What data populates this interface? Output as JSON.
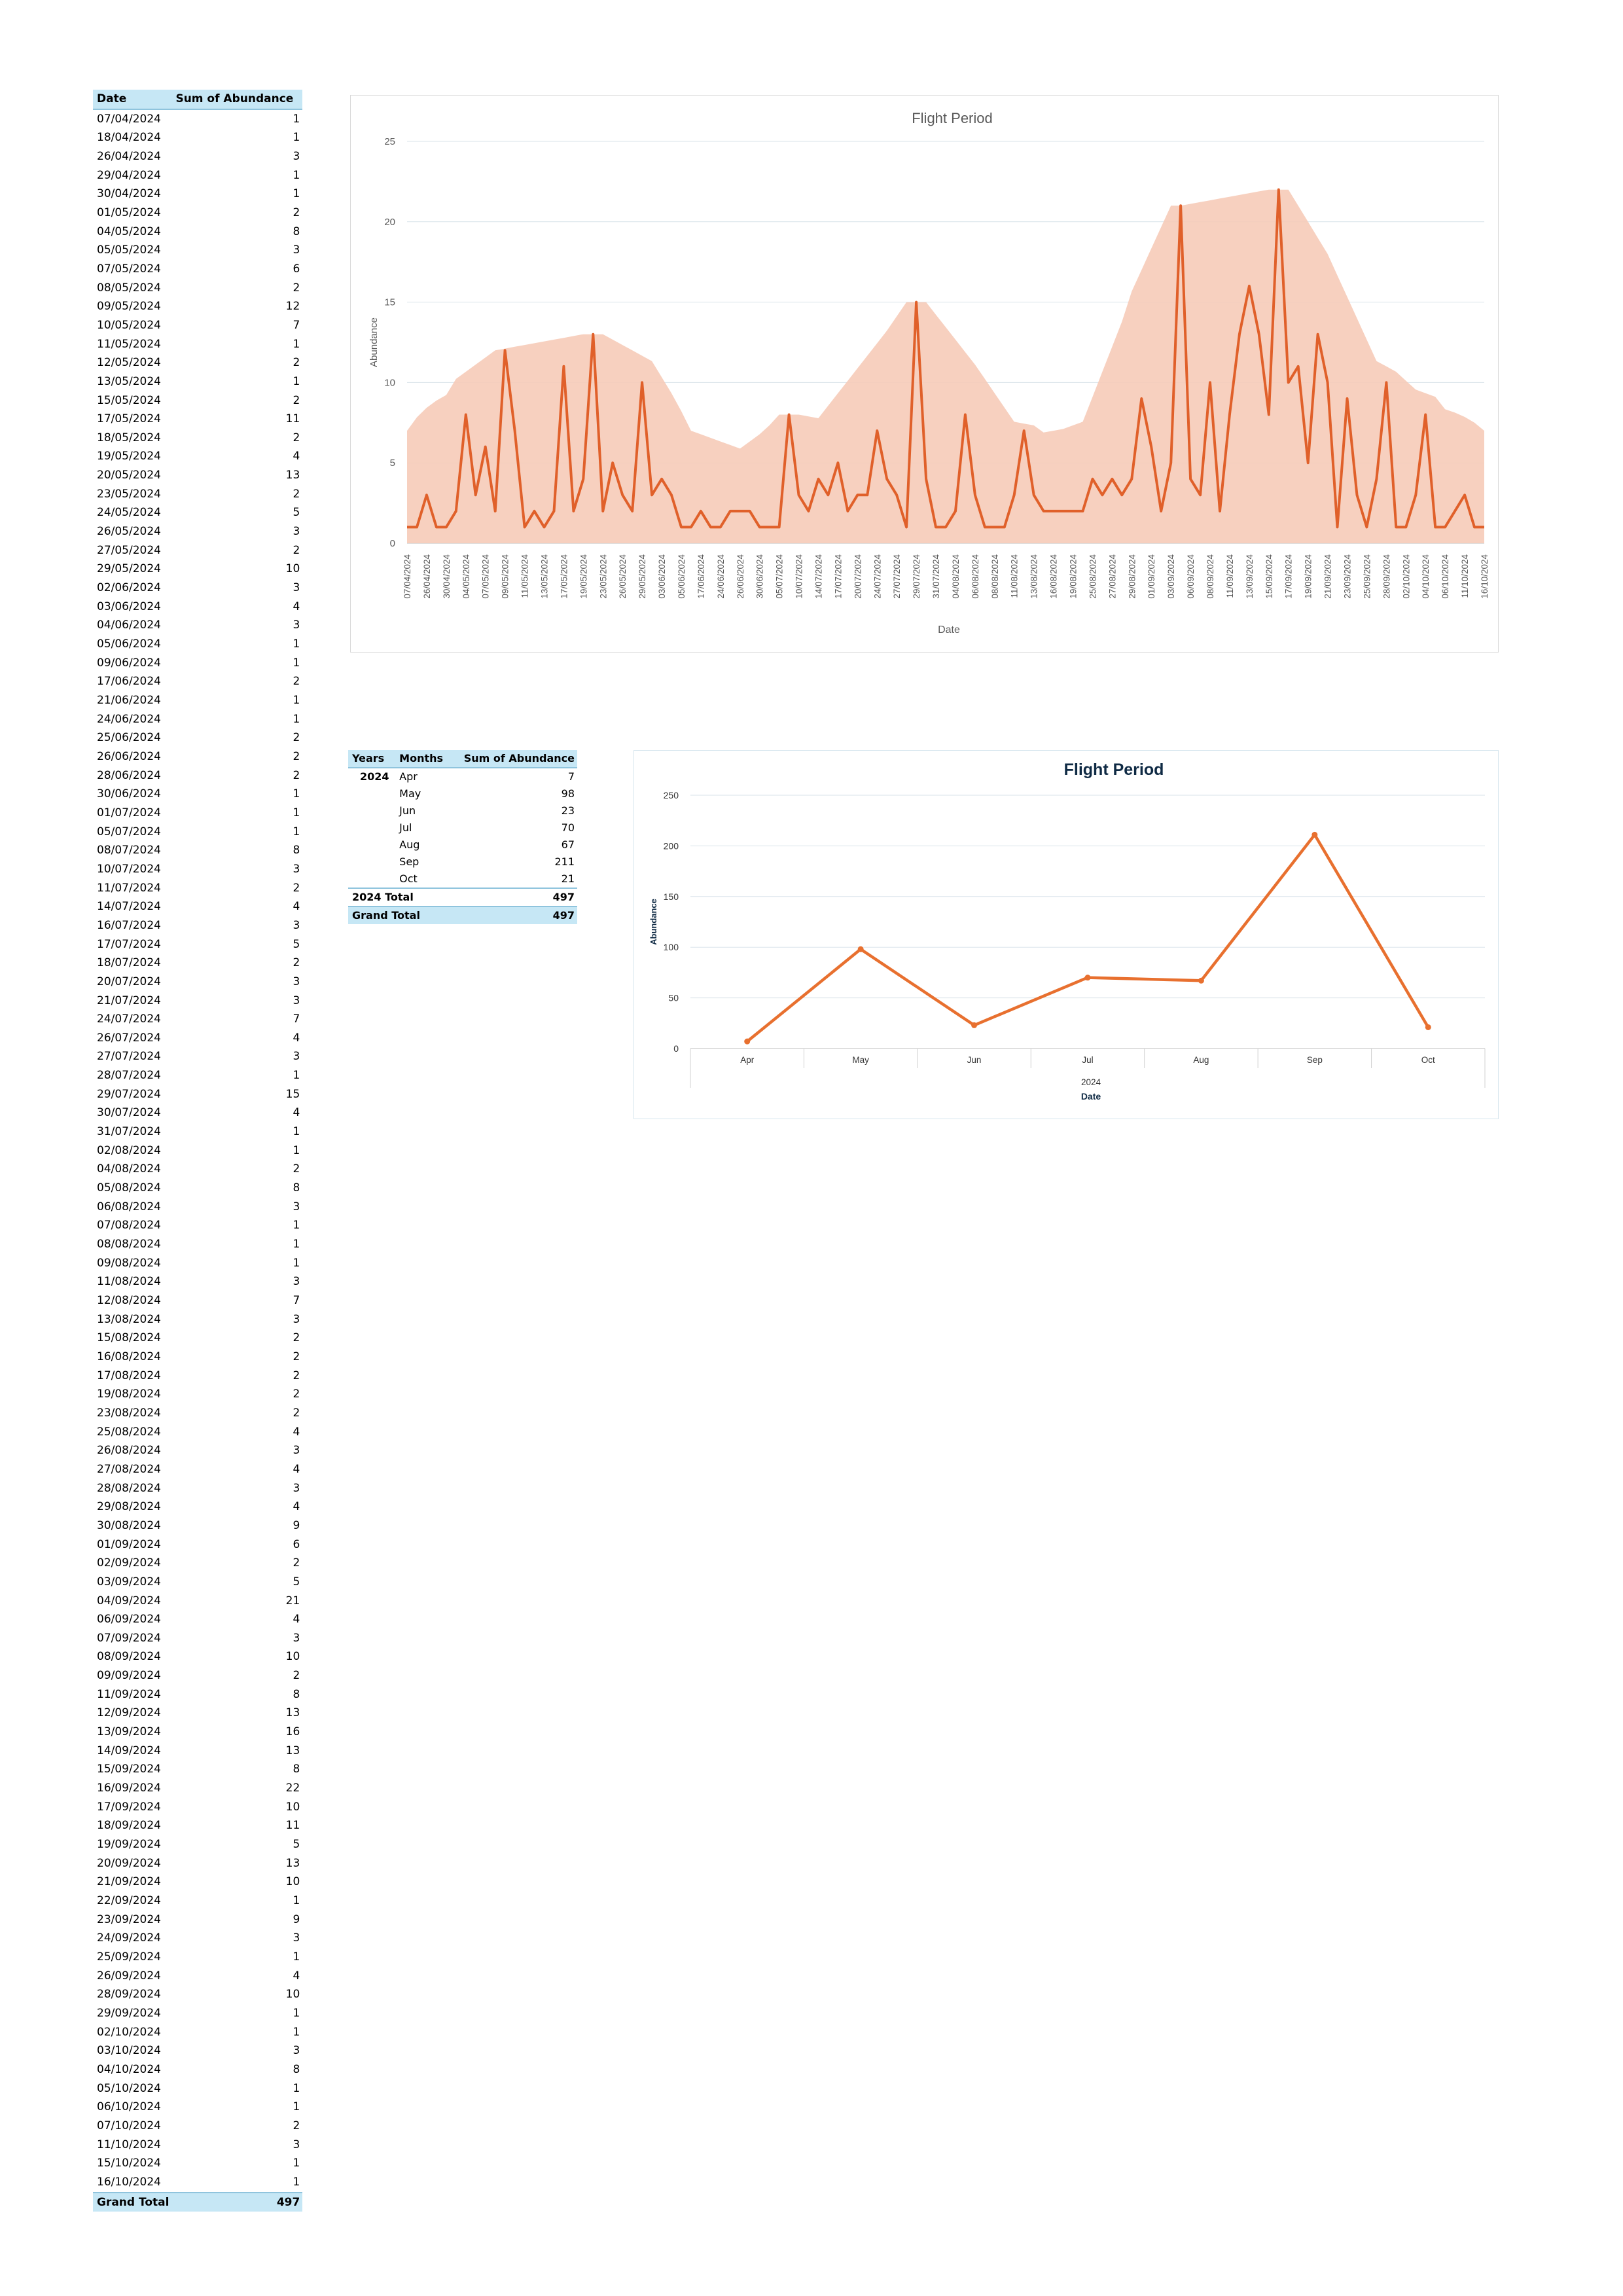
{
  "date_table": {
    "header_date": "Date",
    "header_sum": "Sum of Abundance",
    "rows": [
      [
        "07/04/2024",
        "1"
      ],
      [
        "18/04/2024",
        "1"
      ],
      [
        "26/04/2024",
        "3"
      ],
      [
        "29/04/2024",
        "1"
      ],
      [
        "30/04/2024",
        "1"
      ],
      [
        "01/05/2024",
        "2"
      ],
      [
        "04/05/2024",
        "8"
      ],
      [
        "05/05/2024",
        "3"
      ],
      [
        "07/05/2024",
        "6"
      ],
      [
        "08/05/2024",
        "2"
      ],
      [
        "09/05/2024",
        "12"
      ],
      [
        "10/05/2024",
        "7"
      ],
      [
        "11/05/2024",
        "1"
      ],
      [
        "12/05/2024",
        "2"
      ],
      [
        "13/05/2024",
        "1"
      ],
      [
        "15/05/2024",
        "2"
      ],
      [
        "17/05/2024",
        "11"
      ],
      [
        "18/05/2024",
        "2"
      ],
      [
        "19/05/2024",
        "4"
      ],
      [
        "20/05/2024",
        "13"
      ],
      [
        "23/05/2024",
        "2"
      ],
      [
        "24/05/2024",
        "5"
      ],
      [
        "26/05/2024",
        "3"
      ],
      [
        "27/05/2024",
        "2"
      ],
      [
        "29/05/2024",
        "10"
      ],
      [
        "02/06/2024",
        "3"
      ],
      [
        "03/06/2024",
        "4"
      ],
      [
        "04/06/2024",
        "3"
      ],
      [
        "05/06/2024",
        "1"
      ],
      [
        "09/06/2024",
        "1"
      ],
      [
        "17/06/2024",
        "2"
      ],
      [
        "21/06/2024",
        "1"
      ],
      [
        "24/06/2024",
        "1"
      ],
      [
        "25/06/2024",
        "2"
      ],
      [
        "26/06/2024",
        "2"
      ],
      [
        "28/06/2024",
        "2"
      ],
      [
        "30/06/2024",
        "1"
      ],
      [
        "01/07/2024",
        "1"
      ],
      [
        "05/07/2024",
        "1"
      ],
      [
        "08/07/2024",
        "8"
      ],
      [
        "10/07/2024",
        "3"
      ],
      [
        "11/07/2024",
        "2"
      ],
      [
        "14/07/2024",
        "4"
      ],
      [
        "16/07/2024",
        "3"
      ],
      [
        "17/07/2024",
        "5"
      ],
      [
        "18/07/2024",
        "2"
      ],
      [
        "20/07/2024",
        "3"
      ],
      [
        "21/07/2024",
        "3"
      ],
      [
        "24/07/2024",
        "7"
      ],
      [
        "26/07/2024",
        "4"
      ],
      [
        "27/07/2024",
        "3"
      ],
      [
        "28/07/2024",
        "1"
      ],
      [
        "29/07/2024",
        "15"
      ],
      [
        "30/07/2024",
        "4"
      ],
      [
        "31/07/2024",
        "1"
      ],
      [
        "02/08/2024",
        "1"
      ],
      [
        "04/08/2024",
        "2"
      ],
      [
        "05/08/2024",
        "8"
      ],
      [
        "06/08/2024",
        "3"
      ],
      [
        "07/08/2024",
        "1"
      ],
      [
        "08/08/2024",
        "1"
      ],
      [
        "09/08/2024",
        "1"
      ],
      [
        "11/08/2024",
        "3"
      ],
      [
        "12/08/2024",
        "7"
      ],
      [
        "13/08/2024",
        "3"
      ],
      [
        "15/08/2024",
        "2"
      ],
      [
        "16/08/2024",
        "2"
      ],
      [
        "17/08/2024",
        "2"
      ],
      [
        "19/08/2024",
        "2"
      ],
      [
        "23/08/2024",
        "2"
      ],
      [
        "25/08/2024",
        "4"
      ],
      [
        "26/08/2024",
        "3"
      ],
      [
        "27/08/2024",
        "4"
      ],
      [
        "28/08/2024",
        "3"
      ],
      [
        "29/08/2024",
        "4"
      ],
      [
        "30/08/2024",
        "9"
      ],
      [
        "01/09/2024",
        "6"
      ],
      [
        "02/09/2024",
        "2"
      ],
      [
        "03/09/2024",
        "5"
      ],
      [
        "04/09/2024",
        "21"
      ],
      [
        "06/09/2024",
        "4"
      ],
      [
        "07/09/2024",
        "3"
      ],
      [
        "08/09/2024",
        "10"
      ],
      [
        "09/09/2024",
        "2"
      ],
      [
        "11/09/2024",
        "8"
      ],
      [
        "12/09/2024",
        "13"
      ],
      [
        "13/09/2024",
        "16"
      ],
      [
        "14/09/2024",
        "13"
      ],
      [
        "15/09/2024",
        "8"
      ],
      [
        "16/09/2024",
        "22"
      ],
      [
        "17/09/2024",
        "10"
      ],
      [
        "18/09/2024",
        "11"
      ],
      [
        "19/09/2024",
        "5"
      ],
      [
        "20/09/2024",
        "13"
      ],
      [
        "21/09/2024",
        "10"
      ],
      [
        "22/09/2024",
        "1"
      ],
      [
        "23/09/2024",
        "9"
      ],
      [
        "24/09/2024",
        "3"
      ],
      [
        "25/09/2024",
        "1"
      ],
      [
        "26/09/2024",
        "4"
      ],
      [
        "28/09/2024",
        "10"
      ],
      [
        "29/09/2024",
        "1"
      ],
      [
        "02/10/2024",
        "1"
      ],
      [
        "03/10/2024",
        "3"
      ],
      [
        "04/10/2024",
        "8"
      ],
      [
        "05/10/2024",
        "1"
      ],
      [
        "06/10/2024",
        "1"
      ],
      [
        "07/10/2024",
        "2"
      ],
      [
        "11/10/2024",
        "3"
      ],
      [
        "15/10/2024",
        "1"
      ],
      [
        "16/10/2024",
        "1"
      ]
    ],
    "grand_total_label": "Grand Total",
    "grand_total_value": "497"
  },
  "month_table": {
    "header_years": "Years",
    "header_months": "Months",
    "header_sum": "Sum of Abundance",
    "year": "2024",
    "rows": [
      [
        "Apr",
        "7"
      ],
      [
        "May",
        "98"
      ],
      [
        "Jun",
        "23"
      ],
      [
        "Jul",
        "70"
      ],
      [
        "Aug",
        "67"
      ],
      [
        "Sep",
        "211"
      ],
      [
        "Oct",
        "21"
      ]
    ],
    "year_total_label": "2024 Total",
    "year_total_value": "497",
    "grand_total_label": "Grand Total",
    "grand_total_value": "497"
  },
  "chart_data": [
    {
      "type": "line",
      "title": "Flight Period",
      "xlabel": "Date",
      "ylabel": "Abundance",
      "ylim": [
        0,
        25
      ],
      "yticks": [
        0,
        5,
        10,
        15,
        20,
        25
      ],
      "grid": true,
      "x": [
        "07/04/2024",
        "18/04/2024",
        "26/04/2024",
        "29/04/2024",
        "30/04/2024",
        "01/05/2024",
        "04/05/2024",
        "05/05/2024",
        "07/05/2024",
        "08/05/2024",
        "09/05/2024",
        "10/05/2024",
        "11/05/2024",
        "12/05/2024",
        "13/05/2024",
        "15/05/2024",
        "17/05/2024",
        "18/05/2024",
        "19/05/2024",
        "20/05/2024",
        "23/05/2024",
        "24/05/2024",
        "26/05/2024",
        "27/05/2024",
        "29/05/2024",
        "02/06/2024",
        "03/06/2024",
        "04/06/2024",
        "05/06/2024",
        "09/06/2024",
        "17/06/2024",
        "21/06/2024",
        "24/06/2024",
        "25/06/2024",
        "26/06/2024",
        "28/06/2024",
        "30/06/2024",
        "01/07/2024",
        "05/07/2024",
        "08/07/2024",
        "10/07/2024",
        "11/07/2024",
        "14/07/2024",
        "16/07/2024",
        "17/07/2024",
        "18/07/2024",
        "20/07/2024",
        "21/07/2024",
        "24/07/2024",
        "26/07/2024",
        "27/07/2024",
        "28/07/2024",
        "29/07/2024",
        "30/07/2024",
        "31/07/2024",
        "02/08/2024",
        "04/08/2024",
        "05/08/2024",
        "06/08/2024",
        "07/08/2024",
        "08/08/2024",
        "09/08/2024",
        "11/08/2024",
        "12/08/2024",
        "13/08/2024",
        "15/08/2024",
        "16/08/2024",
        "17/08/2024",
        "19/08/2024",
        "23/08/2024",
        "25/08/2024",
        "26/08/2024",
        "27/08/2024",
        "28/08/2024",
        "29/08/2024",
        "30/08/2024",
        "01/09/2024",
        "02/09/2024",
        "03/09/2024",
        "04/09/2024",
        "06/09/2024",
        "07/09/2024",
        "08/09/2024",
        "09/09/2024",
        "11/09/2024",
        "12/09/2024",
        "13/09/2024",
        "14/09/2024",
        "15/09/2024",
        "16/09/2024",
        "17/09/2024",
        "18/09/2024",
        "19/09/2024",
        "20/09/2024",
        "21/09/2024",
        "22/09/2024",
        "23/09/2024",
        "24/09/2024",
        "25/09/2024",
        "26/09/2024",
        "28/09/2024",
        "29/09/2024",
        "02/10/2024",
        "03/10/2024",
        "04/10/2024",
        "05/10/2024",
        "06/10/2024",
        "07/10/2024",
        "11/10/2024",
        "15/10/2024",
        "16/10/2024"
      ],
      "values": [
        1,
        1,
        3,
        1,
        1,
        2,
        8,
        3,
        6,
        2,
        12,
        7,
        1,
        2,
        1,
        2,
        11,
        2,
        4,
        13,
        2,
        5,
        3,
        2,
        10,
        3,
        4,
        3,
        1,
        1,
        2,
        1,
        1,
        2,
        2,
        2,
        1,
        1,
        1,
        8,
        3,
        2,
        4,
        3,
        5,
        2,
        3,
        3,
        7,
        4,
        3,
        1,
        15,
        4,
        1,
        1,
        2,
        8,
        3,
        1,
        1,
        1,
        3,
        7,
        3,
        2,
        2,
        2,
        2,
        2,
        4,
        3,
        4,
        3,
        4,
        9,
        6,
        2,
        5,
        21,
        4,
        3,
        10,
        2,
        8,
        13,
        16,
        13,
        8,
        22,
        10,
        11,
        5,
        13,
        10,
        1,
        9,
        3,
        1,
        4,
        10,
        1,
        1,
        3,
        8,
        1,
        1,
        2,
        3,
        1,
        1
      ],
      "xtick_labels": [
        "07/04/2024",
        "26/04/2024",
        "30/04/2024",
        "04/05/2024",
        "07/05/2024",
        "09/05/2024",
        "11/05/2024",
        "13/05/2024",
        "17/05/2024",
        "19/05/2024",
        "23/05/2024",
        "26/05/2024",
        "29/05/2024",
        "03/06/2024",
        "05/06/2024",
        "17/06/2024",
        "24/06/2024",
        "26/06/2024",
        "30/06/2024",
        "05/07/2024",
        "10/07/2024",
        "14/07/2024",
        "17/07/2024",
        "20/07/2024",
        "24/07/2024",
        "27/07/2024",
        "29/07/2024",
        "31/07/2024",
        "04/08/2024",
        "06/08/2024",
        "08/08/2024",
        "11/08/2024",
        "13/08/2024",
        "16/08/2024",
        "19/08/2024",
        "25/08/2024",
        "27/08/2024",
        "29/08/2024",
        "01/09/2024",
        "03/09/2024",
        "06/09/2024",
        "08/09/2024",
        "11/09/2024",
        "13/09/2024",
        "15/09/2024",
        "17/09/2024",
        "19/09/2024",
        "21/09/2024",
        "23/09/2024",
        "25/09/2024",
        "28/09/2024",
        "02/10/2024",
        "04/10/2024",
        "06/10/2024",
        "11/10/2024",
        "16/10/2024"
      ],
      "smoothed_area": true,
      "colors": {
        "line": "#e0602a",
        "area": "#f6cbb8",
        "grid": "#d9e3ea",
        "axis_text": "#595959"
      }
    },
    {
      "type": "line",
      "title": "Flight Period",
      "xlabel": "Date",
      "ylabel": "Abundance",
      "x_group_label": "2024",
      "categories": [
        "Apr",
        "May",
        "Jun",
        "Jul",
        "Aug",
        "Sep",
        "Oct"
      ],
      "values": [
        7,
        98,
        23,
        70,
        67,
        211,
        21
      ],
      "ylim": [
        0,
        250
      ],
      "yticks": [
        0,
        50,
        100,
        150,
        200,
        250
      ],
      "grid": true,
      "colors": {
        "line": "#e8702f",
        "grid": "#d9e3ea",
        "title": "#0f2a44"
      }
    }
  ]
}
